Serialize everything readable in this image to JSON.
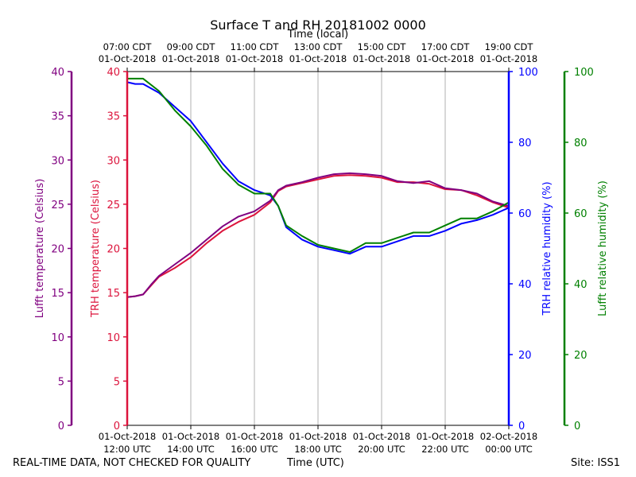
{
  "chart_data": {
    "type": "line",
    "title": "Surface T and RH 20181002 0000",
    "top_axis_label": "Time (local)",
    "bottom_axis_label": "Time (UTC)",
    "x_ticks_utc": [
      {
        "date": "01-Oct-2018",
        "time": "12:00 UTC"
      },
      {
        "date": "01-Oct-2018",
        "time": "14:00 UTC"
      },
      {
        "date": "01-Oct-2018",
        "time": "16:00 UTC"
      },
      {
        "date": "01-Oct-2018",
        "time": "18:00 UTC"
      },
      {
        "date": "01-Oct-2018",
        "time": "20:00 UTC"
      },
      {
        "date": "01-Oct-2018",
        "time": "22:00 UTC"
      },
      {
        "date": "02-Oct-2018",
        "time": "00:00 UTC"
      }
    ],
    "x_ticks_local": [
      {
        "time": "07:00 CDT",
        "date": "01-Oct-2018"
      },
      {
        "time": "09:00 CDT",
        "date": "01-Oct-2018"
      },
      {
        "time": "11:00 CDT",
        "date": "01-Oct-2018"
      },
      {
        "time": "13:00 CDT",
        "date": "01-Oct-2018"
      },
      {
        "time": "15:00 CDT",
        "date": "01-Oct-2018"
      },
      {
        "time": "17:00 CDT",
        "date": "01-Oct-2018"
      },
      {
        "time": "19:00 CDT",
        "date": "01-Oct-2018"
      }
    ],
    "xlim_hours_utc": [
      12,
      24
    ],
    "grid": "vertical",
    "axes": [
      {
        "name": "lufft_t",
        "label": "Lufft temperature (Celsius)",
        "color": "#800080",
        "ylim": [
          0,
          40
        ],
        "ticks": [
          0,
          5,
          10,
          15,
          20,
          25,
          30,
          35,
          40
        ]
      },
      {
        "name": "trh_t",
        "label": "TRH temperature (Celsius)",
        "color": "#dc143c",
        "ylim": [
          0,
          40
        ],
        "ticks": [
          0,
          5,
          10,
          15,
          20,
          25,
          30,
          35,
          40
        ]
      },
      {
        "name": "trh_rh",
        "label": "TRH relative humidity (%)",
        "color": "#0000ff",
        "ylim": [
          0,
          100
        ],
        "ticks": [
          0,
          20,
          40,
          60,
          80,
          100
        ]
      },
      {
        "name": "lufft_rh",
        "label": "Lufft relative humidity (%)",
        "color": "#008000",
        "ylim": [
          0,
          100
        ],
        "ticks": [
          0,
          20,
          40,
          60,
          80,
          100
        ]
      }
    ],
    "series": [
      {
        "axis": "trh_t",
        "color": "#dc143c",
        "x": [
          12.0,
          12.25,
          12.5,
          12.75,
          13.0,
          13.5,
          14.0,
          14.5,
          15.0,
          15.5,
          16.0,
          16.5,
          16.75,
          17.0,
          17.5,
          18.0,
          18.5,
          19.0,
          19.5,
          20.0,
          20.5,
          21.0,
          21.5,
          22.0,
          22.5,
          23.0,
          23.5,
          24.0
        ],
        "y": [
          14.5,
          14.6,
          14.8,
          15.8,
          16.8,
          17.8,
          19.0,
          20.6,
          22.0,
          23.0,
          23.8,
          25.2,
          26.5,
          27.0,
          27.4,
          27.8,
          28.2,
          28.3,
          28.2,
          28.0,
          27.5,
          27.5,
          27.3,
          26.7,
          26.6,
          26.0,
          25.2,
          24.6
        ]
      },
      {
        "axis": "lufft_t",
        "color": "#800080",
        "x": [
          12.0,
          12.25,
          12.5,
          12.75,
          13.0,
          13.5,
          14.0,
          14.5,
          15.0,
          15.5,
          16.0,
          16.5,
          16.75,
          17.0,
          17.5,
          18.0,
          18.5,
          19.0,
          19.5,
          20.0,
          20.5,
          21.0,
          21.5,
          22.0,
          22.5,
          23.0,
          23.5,
          24.0
        ],
        "y": [
          14.5,
          14.6,
          14.8,
          15.9,
          16.9,
          18.2,
          19.5,
          21.0,
          22.5,
          23.6,
          24.2,
          25.4,
          26.6,
          27.1,
          27.5,
          28.0,
          28.4,
          28.5,
          28.4,
          28.2,
          27.6,
          27.4,
          27.6,
          26.8,
          26.6,
          26.2,
          25.3,
          24.8
        ]
      },
      {
        "axis": "trh_rh",
        "color": "#0000ff",
        "x": [
          12.0,
          12.25,
          12.5,
          13.0,
          13.5,
          14.0,
          14.5,
          15.0,
          15.5,
          16.0,
          16.5,
          16.75,
          17.0,
          17.5,
          18.0,
          18.5,
          19.0,
          19.5,
          20.0,
          20.5,
          21.0,
          21.5,
          22.0,
          22.5,
          23.0,
          23.5,
          24.0
        ],
        "y": [
          97.0,
          96.5,
          96.5,
          94.0,
          90.0,
          86.0,
          80.0,
          74.0,
          69.0,
          66.5,
          65.0,
          62.0,
          56.0,
          52.5,
          50.5,
          49.5,
          48.5,
          50.5,
          50.5,
          52.0,
          53.5,
          53.5,
          55.0,
          57.0,
          58.0,
          59.5,
          61.5
        ]
      },
      {
        "axis": "lufft_rh",
        "color": "#008000",
        "x": [
          12.0,
          12.25,
          12.5,
          13.0,
          13.5,
          14.0,
          14.5,
          15.0,
          15.5,
          16.0,
          16.5,
          16.75,
          17.0,
          17.5,
          18.0,
          18.5,
          19.0,
          19.5,
          20.0,
          20.5,
          21.0,
          21.5,
          22.0,
          22.5,
          23.0,
          23.5,
          24.0
        ],
        "y": [
          98.0,
          98.0,
          98.0,
          94.5,
          89.0,
          84.5,
          79.0,
          72.5,
          68.0,
          65.5,
          65.5,
          62.0,
          56.5,
          53.5,
          51.0,
          50.0,
          49.0,
          51.5,
          51.5,
          53.0,
          54.5,
          54.5,
          56.5,
          58.5,
          58.5,
          60.5,
          63.0
        ]
      }
    ]
  },
  "footer": {
    "left": "REAL-TIME DATA, NOT CHECKED FOR QUALITY",
    "center": "Time (UTC)",
    "right": "Site: ISS1"
  }
}
